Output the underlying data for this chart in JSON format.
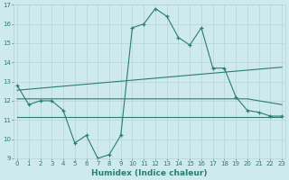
{
  "x": [
    0,
    1,
    2,
    3,
    4,
    5,
    6,
    7,
    8,
    9,
    10,
    11,
    12,
    13,
    14,
    15,
    16,
    17,
    18,
    19,
    20,
    21,
    22,
    23
  ],
  "line1": [
    12.8,
    11.8,
    12.0,
    12.0,
    11.5,
    9.8,
    10.2,
    9.0,
    9.2,
    10.2,
    15.8,
    16.0,
    16.8,
    16.4,
    15.3,
    14.9,
    15.8,
    13.7,
    13.7,
    12.2,
    11.5,
    11.4,
    11.2,
    11.2
  ],
  "line2_x": [
    0,
    23
  ],
  "line2_y": [
    12.55,
    13.75
  ],
  "line3_x": [
    0,
    20,
    23
  ],
  "line3_y": [
    12.1,
    12.1,
    11.8
  ],
  "line4_x": [
    0,
    23
  ],
  "line4_y": [
    11.15,
    11.15
  ],
  "xlabel": "Humidex (Indice chaleur)",
  "ylim": [
    9,
    17
  ],
  "xlim": [
    -0.3,
    23.3
  ],
  "yticks": [
    9,
    10,
    11,
    12,
    13,
    14,
    15,
    16,
    17
  ],
  "xticks": [
    0,
    1,
    2,
    3,
    4,
    5,
    6,
    7,
    8,
    9,
    10,
    11,
    12,
    13,
    14,
    15,
    16,
    17,
    18,
    19,
    20,
    21,
    22,
    23
  ],
  "line_color": "#2a7d6f",
  "bg_color": "#ceeaec",
  "grid_color": "#b8d4d6"
}
